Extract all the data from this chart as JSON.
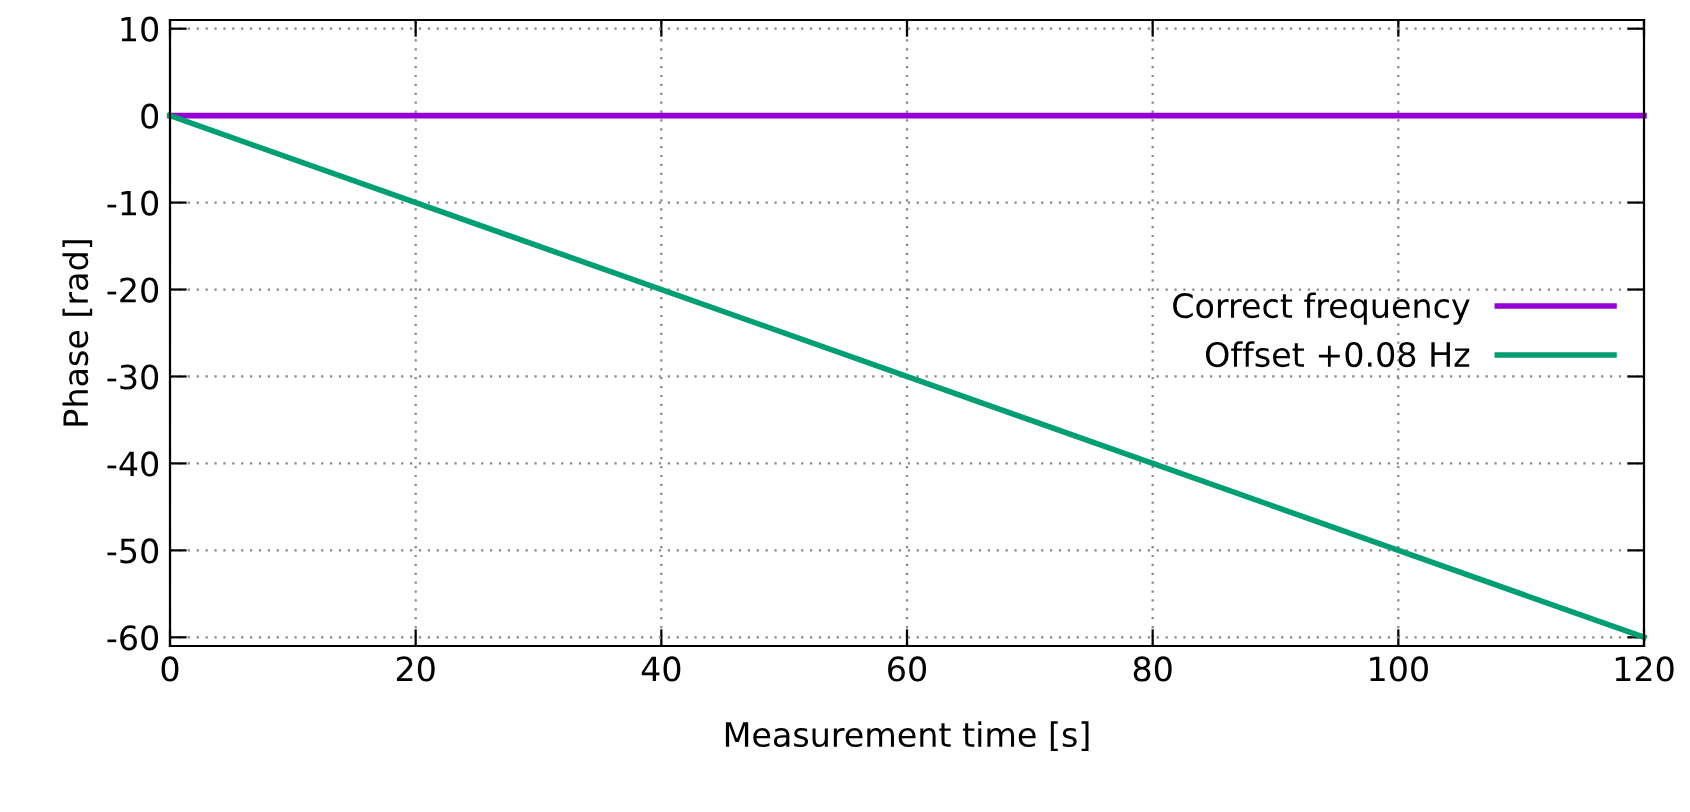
{
  "chart_data": {
    "type": "line",
    "xlabel": "Measurement time [s]",
    "ylabel": "Phase [rad]",
    "xlim": [
      0,
      120
    ],
    "ylim": [
      -61,
      11
    ],
    "xticks": [
      0,
      20,
      40,
      60,
      80,
      100,
      120
    ],
    "yticks": [
      10,
      0,
      -10,
      -20,
      -30,
      -40,
      -50,
      -60
    ],
    "x": [
      0,
      120
    ],
    "series": [
      {
        "name": "Correct frequency",
        "color": "#9400d3",
        "values": [
          0,
          0
        ]
      },
      {
        "name": "Offset +0.08 Hz",
        "color": "#009e73",
        "values": [
          0,
          -60
        ]
      }
    ],
    "grid": true,
    "legend": "right",
    "line_style": "solid"
  }
}
